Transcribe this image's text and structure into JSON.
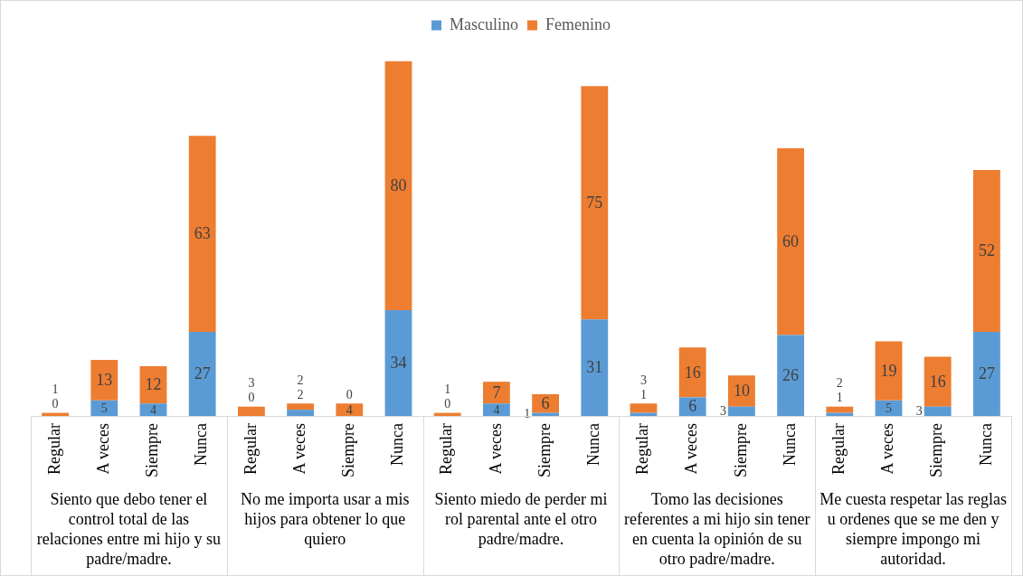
{
  "chart_data": {
    "type": "bar",
    "stacked": true,
    "data_labels": true,
    "legend": "top",
    "tick_labels": "x",
    "grid": false,
    "categories": [
      "Regular",
      "A veces",
      "Siempre",
      "Nunca",
      "Regular",
      "A veces",
      "Siempre",
      "Nunca",
      "Regular",
      "A veces",
      "Siempre",
      "Nunca",
      "Regular",
      "A veces",
      "Siempre",
      "Nunca",
      "Regular",
      "A veces",
      "Siempre",
      "Nunca"
    ],
    "series": [
      {
        "name": "Masculino",
        "color": "#5b9bd5",
        "values": [
          0,
          5,
          4,
          27,
          0,
          2,
          0,
          34,
          0,
          4,
          1,
          31,
          1,
          6,
          3,
          26,
          1,
          5,
          3,
          27
        ]
      },
      {
        "name": "Femenino",
        "color": "#ed7d31",
        "values": [
          1,
          13,
          12,
          63,
          3,
          2,
          4,
          80,
          1,
          7,
          6,
          75,
          3,
          16,
          10,
          60,
          2,
          19,
          16,
          52
        ]
      }
    ],
    "annotations": [
      "Siento que debo tener el control total de las relaciones entre mi hijo y su padre/madre.",
      "No me importa usar a mis hijos para obtener lo que quiero",
      "Siento miedo de perder mi rol parental ante el otro padre/madre.",
      "Tomo las decisiones referentes a mi hijo sin tener en cuenta la opinión de su otro padre/madre.",
      "Me cuesta respetar las reglas u ordenes que se me den y siempre impongo mi autoridad."
    ]
  }
}
